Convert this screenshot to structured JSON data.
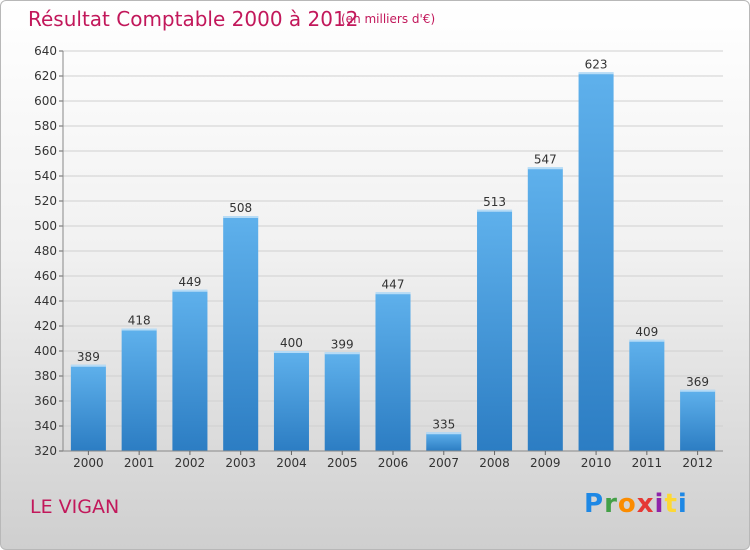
{
  "title": "Résultat Comptable 2000 à 2012",
  "subtitle": "(en milliers d'€)",
  "commune": "LE VIGAN",
  "logo_text": "Proxiti",
  "colors": {
    "title": "#c2185b",
    "bar_top": "#5fb1ec",
    "bar_bottom": "#2c7dc3",
    "grid": "#d0d0d0",
    "axis_text": "#333333"
  },
  "chart_data": {
    "type": "bar",
    "categories": [
      "2000",
      "2001",
      "2002",
      "2003",
      "2004",
      "2005",
      "2006",
      "2007",
      "2008",
      "2009",
      "2010",
      "2011",
      "2012"
    ],
    "values": [
      389,
      418,
      449,
      508,
      400,
      399,
      447,
      335,
      513,
      547,
      623,
      409,
      369
    ],
    "title": "Résultat Comptable 2000 à 2012",
    "xlabel": "",
    "ylabel": "",
    "ylim": [
      320,
      640
    ],
    "yticks": [
      320,
      340,
      360,
      380,
      400,
      420,
      440,
      460,
      480,
      500,
      520,
      540,
      560,
      580,
      600,
      620,
      640
    ],
    "grid": true,
    "data_labels": true
  }
}
